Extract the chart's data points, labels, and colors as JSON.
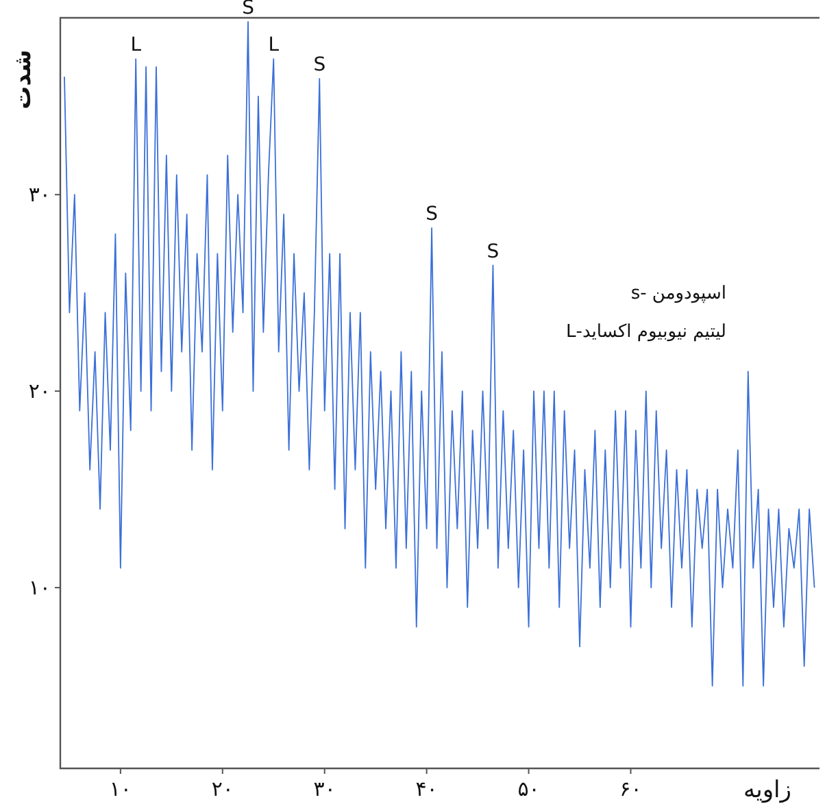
{
  "chart_data": {
    "type": "line",
    "xlabel": "زاویه",
    "ylabel": "شدت",
    "xlim": [
      4.1,
      78.5
    ],
    "ylim": [
      0.8,
      39
    ],
    "xticks": [
      {
        "value": 10,
        "label": "۱۰"
      },
      {
        "value": 20,
        "label": "۲۰"
      },
      {
        "value": 30,
        "label": "۳۰"
      },
      {
        "value": 40,
        "label": "۴۰"
      },
      {
        "value": 50,
        "label": "۵۰"
      },
      {
        "value": 60,
        "label": "۶۰"
      }
    ],
    "yticks": [
      {
        "value": 10,
        "label": "۱۰"
      },
      {
        "value": 20,
        "label": "۲۰"
      },
      {
        "value": 30,
        "label": "۳۰"
      }
    ],
    "grid": false,
    "marker": "none",
    "line_style": "solid",
    "series": [
      {
        "color": "#3a6fd8",
        "x": [
          4.5,
          5,
          5.5,
          6,
          6.5,
          7,
          7.5,
          8,
          8.5,
          9,
          9.5,
          10,
          10.5,
          11,
          11.5,
          12,
          12.5,
          13,
          13.5,
          14,
          14.5,
          15,
          15.5,
          16,
          16.5,
          17,
          17.5,
          18,
          18.5,
          19,
          19.5,
          20,
          20.5,
          21,
          21.5,
          22,
          22.5,
          23,
          23.5,
          24,
          24.5,
          25,
          25.5,
          26,
          26.5,
          27,
          27.5,
          28,
          28.5,
          29,
          29.5,
          30,
          30.5,
          31,
          31.5,
          32,
          32.5,
          33,
          33.5,
          34,
          34.5,
          35,
          35.5,
          36,
          36.5,
          37,
          37.5,
          38,
          38.5,
          39,
          39.5,
          40,
          40.5,
          41,
          41.5,
          42,
          42.5,
          43,
          43.5,
          44,
          44.5,
          45,
          45.5,
          46,
          46.5,
          47,
          47.5,
          48,
          48.5,
          49,
          49.5,
          50,
          50.5,
          51,
          51.5,
          52,
          52.5,
          53,
          53.5,
          54,
          54.5,
          55,
          55.5,
          56,
          56.5,
          57,
          57.5,
          58,
          58.5,
          59,
          59.5,
          60,
          60.5,
          61,
          61.5,
          62,
          62.5,
          63,
          63.5,
          64,
          64.5,
          65,
          65.5,
          66,
          66.5,
          67,
          67.5,
          68,
          68.5,
          69,
          69.5,
          70,
          70.5,
          71,
          71.5,
          72,
          72.5,
          73,
          73.5,
          74,
          74.5,
          75,
          75.5,
          76,
          76.5,
          77,
          77.5,
          78
        ],
        "values": [
          36,
          24,
          30,
          19,
          25,
          16,
          22,
          14,
          24,
          17,
          28,
          11,
          26,
          18,
          36.9,
          20,
          36.5,
          19,
          36.5,
          21,
          32,
          20,
          31,
          22,
          29,
          17,
          27,
          22,
          31,
          16,
          27,
          19,
          32,
          23,
          30,
          24,
          38.8,
          20,
          35,
          23,
          31,
          36.9,
          22,
          29,
          17,
          27,
          20,
          25,
          16,
          24,
          35.9,
          19,
          27,
          15,
          27,
          13,
          24,
          16,
          24,
          11,
          22,
          15,
          21,
          13,
          20,
          11,
          22,
          12,
          21,
          8,
          20,
          13,
          28.3,
          12,
          22,
          10,
          19,
          13,
          20,
          9,
          18,
          12,
          20,
          13,
          26.4,
          11,
          19,
          12,
          18,
          10,
          17,
          8,
          20,
          12,
          20,
          11,
          20,
          9,
          19,
          12,
          17,
          7,
          16,
          11,
          18,
          9,
          17,
          10,
          19,
          11,
          19,
          8,
          18,
          11,
          20,
          10,
          19,
          12,
          17,
          9,
          16,
          11,
          16,
          8,
          15,
          12,
          15,
          5,
          15,
          10,
          14,
          11,
          17,
          5,
          21,
          11,
          15,
          5,
          14,
          9,
          14,
          8,
          13,
          11,
          14,
          6,
          14,
          10
        ]
      }
    ],
    "annotations": [
      {
        "text": "L",
        "x": 11.5,
        "y": 36.9
      },
      {
        "text": "S",
        "x": 22.5,
        "y": 38.8
      },
      {
        "text": "L",
        "x": 25,
        "y": 36.9
      },
      {
        "text": "S",
        "x": 29.5,
        "y": 35.9
      },
      {
        "text": "S",
        "x": 40.5,
        "y": 28.3
      },
      {
        "text": "S",
        "x": 46.5,
        "y": 26.4
      },
      "اسپودومن -s",
      "لیتیم نیوبیوم اکساید-L"
    ]
  }
}
